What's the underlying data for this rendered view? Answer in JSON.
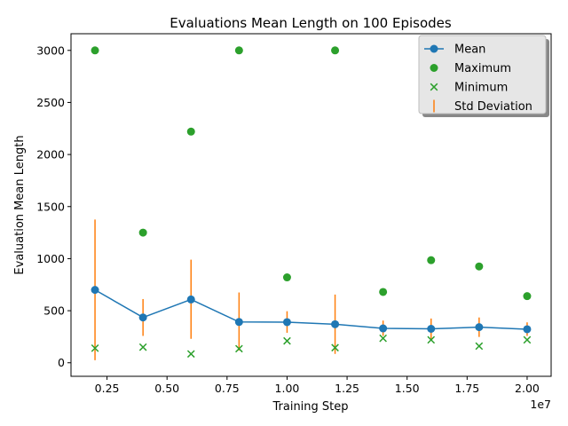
{
  "chart_data": {
    "type": "line",
    "title": "Evaluations Mean Length on 100 Episodes",
    "xlabel": "Training Step",
    "ylabel": "Evaluation Mean Length",
    "x_offset_label": "1e7",
    "x_scale": 10000000,
    "xlim": [
      0.1,
      2.1
    ],
    "ylim": [
      -130,
      3160
    ],
    "x_ticks": [
      0.25,
      0.5,
      0.75,
      1.0,
      1.25,
      1.5,
      1.75,
      2.0
    ],
    "x_tick_labels": [
      "0.25",
      "0.50",
      "0.75",
      "1.00",
      "1.25",
      "1.50",
      "1.75",
      "2.00"
    ],
    "y_ticks": [
      0,
      500,
      1000,
      1500,
      2000,
      2500,
      3000
    ],
    "y_tick_labels": [
      "0",
      "500",
      "1000",
      "1500",
      "2000",
      "2500",
      "3000"
    ],
    "x": [
      0.2,
      0.4,
      0.6,
      0.8,
      1.0,
      1.2,
      1.4,
      1.6,
      1.8,
      2.0
    ],
    "series": [
      {
        "name": "Mean",
        "kind": "line",
        "color": "#1f77b4",
        "values": [
          700,
          435,
          608,
          392,
          390,
          370,
          330,
          326,
          342,
          322
        ]
      },
      {
        "name": "Maximum",
        "kind": "scatter-dot",
        "color": "#2ca02c",
        "values": [
          3000,
          1250,
          2220,
          3000,
          820,
          3000,
          680,
          985,
          925,
          640
        ]
      },
      {
        "name": "Minimum",
        "kind": "scatter-x",
        "color": "#2ca02c",
        "values": [
          140,
          150,
          85,
          135,
          210,
          145,
          235,
          220,
          160,
          220
        ]
      },
      {
        "name": "Std Deviation",
        "kind": "errorbar",
        "color": "#ff7f0e",
        "low": [
          25,
          258,
          230,
          118,
          288,
          85,
          258,
          230,
          248,
          258
        ],
        "high": [
          1375,
          612,
          990,
          675,
          495,
          655,
          405,
          425,
          435,
          388
        ]
      }
    ],
    "legend": {
      "position": "top-right",
      "entries": [
        "Mean",
        "Maximum",
        "Minimum",
        "Std Deviation"
      ]
    },
    "grid": false
  }
}
